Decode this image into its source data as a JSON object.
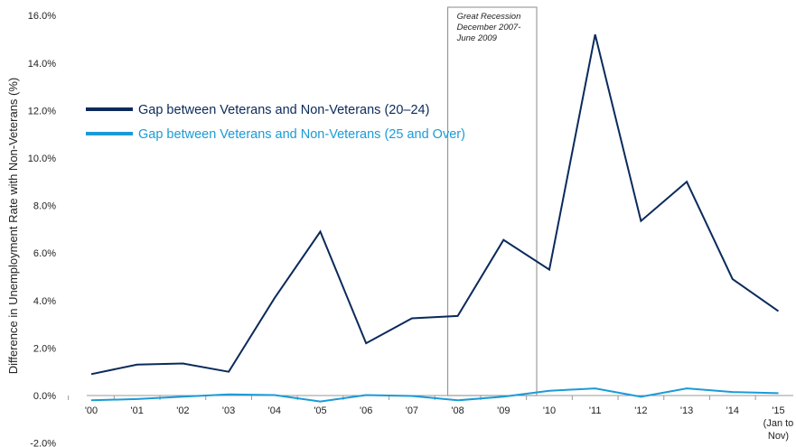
{
  "chart_data": {
    "type": "line",
    "ylabel": "Difference in Unemployment Rate with Non-Veterans (%)",
    "xlabel": "",
    "ylim": [
      -2.0,
      16.0
    ],
    "yticks": [
      "16.0%",
      "14.0%",
      "12.0%",
      "10.0%",
      "8.0%",
      "6.0%",
      "4.0%",
      "2.0%",
      "0.0%",
      "-2.0%"
    ],
    "ytick_values": [
      16,
      14,
      12,
      10,
      8,
      6,
      4,
      2,
      0,
      -2
    ],
    "categories": [
      "'00",
      "'01",
      "'02",
      "'03",
      "'04",
      "'05",
      "'06",
      "'07",
      "'08",
      "'09",
      "'10",
      "'11",
      "'12",
      "'13",
      "'14",
      "'15"
    ],
    "last_category_note": [
      "(Jan to",
      "Nov)"
    ],
    "series": [
      {
        "name": "Gap between Veterans and Non-Veterans (20–24)",
        "color": "#0b2a5b",
        "values": [
          0.9,
          1.3,
          1.35,
          1.0,
          4.1,
          6.9,
          2.2,
          3.25,
          3.35,
          6.55,
          5.3,
          15.2,
          7.35,
          9.0,
          4.9,
          3.55
        ]
      },
      {
        "name": "Gap between Veterans and Non-Veterans (25 and Over)",
        "color": "#1a9bd7",
        "values": [
          -0.2,
          -0.15,
          -0.05,
          0.05,
          0.02,
          -0.25,
          0.02,
          -0.02,
          -0.2,
          -0.05,
          0.2,
          0.3,
          -0.05,
          0.3,
          0.15,
          0.1
        ]
      }
    ],
    "annotation": {
      "lines": [
        "Great Recession",
        "December 2007-",
        "June 2009"
      ],
      "x_start": "'08",
      "x_end": "'10"
    },
    "legend_position": "upper-left",
    "grid": false
  }
}
